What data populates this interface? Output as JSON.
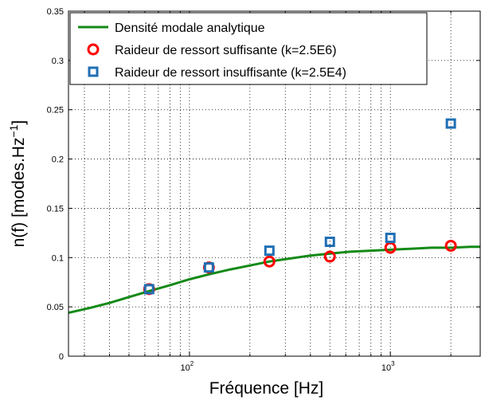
{
  "chart_data": {
    "type": "line",
    "xscale": "log",
    "xlim": [
      25,
      2800
    ],
    "ylim": [
      0,
      0.35
    ],
    "grid": true,
    "legend_position": "top-left",
    "xlabel": "Fréquence [Hz]",
    "ylabel_main": "n(f) [modes.Hz",
    "ylabel_sup": "−1",
    "ylabel_close": "]",
    "ytick_labels": [
      "0",
      "0.05",
      "0.1",
      "0.15",
      "0.2",
      "0.25",
      "0.3",
      "0.35"
    ],
    "xtick_labels": [
      {
        "base": "10",
        "exp": "2"
      },
      {
        "base": "10",
        "exp": "3"
      }
    ],
    "series": [
      {
        "name": "Densité modale analytique",
        "kind": "line",
        "color": "#138a17",
        "x": [
          25,
          32,
          40,
          50,
          63,
          80,
          100,
          125,
          160,
          200,
          250,
          315,
          400,
          500,
          630,
          800,
          1000,
          1250,
          1600,
          2000,
          2500,
          2800
        ],
        "y": [
          0.044,
          0.049,
          0.054,
          0.06,
          0.066,
          0.072,
          0.078,
          0.083,
          0.088,
          0.092,
          0.096,
          0.099,
          0.102,
          0.104,
          0.106,
          0.107,
          0.108,
          0.109,
          0.11,
          0.11,
          0.111,
          0.111
        ]
      },
      {
        "name": "Raideur de ressort suffisante (k=2.5E6)",
        "kind": "marker-circle",
        "color": "#ff0000",
        "x": [
          63,
          125,
          250,
          500,
          1000,
          2000
        ],
        "y": [
          0.068,
          0.09,
          0.096,
          0.101,
          0.11,
          0.112
        ]
      },
      {
        "name": "Raideur de ressort insuffisante (k=2.5E4)",
        "kind": "marker-square",
        "color": "#1f6fb4",
        "x": [
          63,
          125,
          250,
          500,
          1000,
          2000
        ],
        "y": [
          0.068,
          0.09,
          0.107,
          0.116,
          0.12,
          0.236
        ]
      }
    ]
  }
}
